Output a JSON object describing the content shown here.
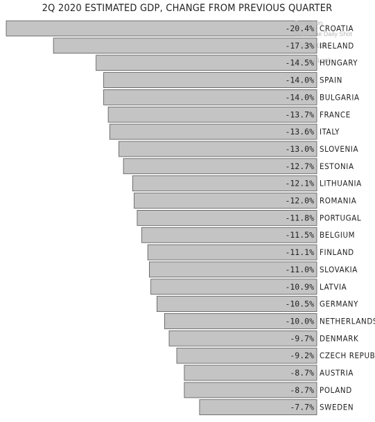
{
  "watermark": {
    "line1": "Posted on",
    "line2": "WSJ: The Daily Shot",
    "line3": "4-Aug-2020",
    "line4": "@SoberLook"
  },
  "chart_data": {
    "type": "bar",
    "orientation": "horizontal",
    "title": "2Q 2020 ESTIMATED GDP, CHANGE FROM PREVIOUS QUARTER",
    "xlabel": "",
    "ylabel": "",
    "grid": false,
    "legend": "none",
    "value_suffix": "%",
    "xlim": [
      -20.4,
      0
    ],
    "bar_color": "#c4c4c4",
    "bar_stroke": "#555555",
    "categories": [
      "CROATIA",
      "IRELAND",
      "HUNGARY",
      "SPAIN",
      "BULGARIA",
      "FRANCE",
      "ITALY",
      "SLOVENIA",
      "ESTONIA",
      "LITHUANIA",
      "ROMANIA",
      "PORTUGAL",
      "BELGIUM",
      "FINLAND",
      "SLOVAKIA",
      "LATVIA",
      "GERMANY",
      "NETHERLANDS",
      "DENMARK",
      "CZECH REPUBLIC",
      "AUSTRIA",
      "POLAND",
      "SWEDEN"
    ],
    "values": [
      -20.4,
      -17.3,
      -14.5,
      -14.0,
      -14.0,
      -13.7,
      -13.6,
      -13.0,
      -12.7,
      -12.1,
      -12.0,
      -11.8,
      -11.5,
      -11.1,
      -11.0,
      -10.9,
      -10.5,
      -10.0,
      -9.7,
      -9.2,
      -8.7,
      -8.7,
      -7.7
    ],
    "value_labels": [
      "-20.4%",
      "-17.3%",
      "-14.5%",
      "-14.0%",
      "-14.0%",
      "-13.7%",
      "-13.6%",
      "-13.0%",
      "-12.7%",
      "-12.1%",
      "-12.0%",
      "-11.8%",
      "-11.5%",
      "-11.1%",
      "-11.0%",
      "-10.9%",
      "-10.5%",
      "-10.0%",
      "-9.7%",
      "-9.2%",
      "-8.7%",
      "-8.7%",
      "-7.7%"
    ]
  }
}
